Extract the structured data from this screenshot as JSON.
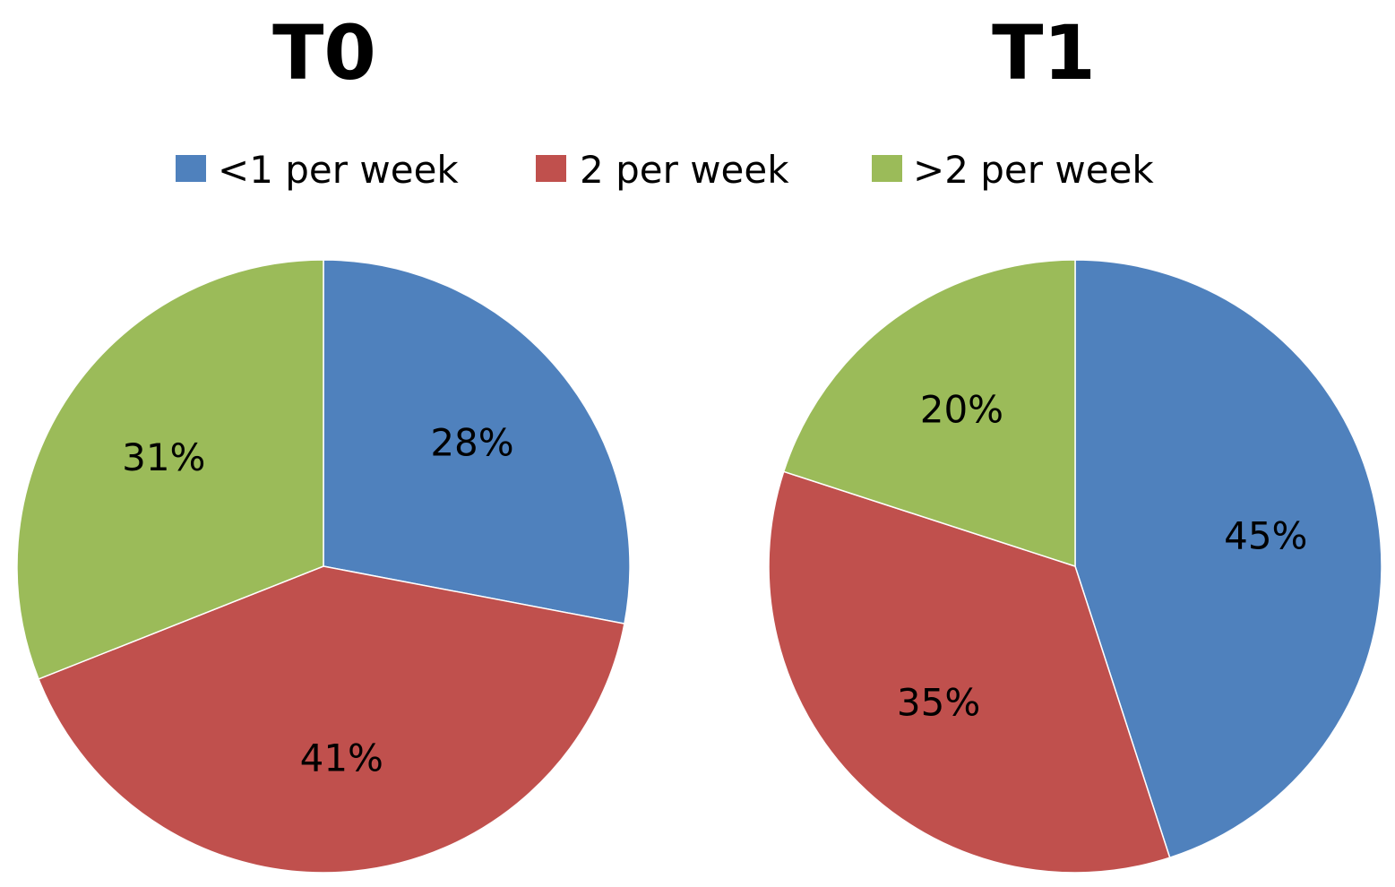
{
  "colors": {
    "lt1_per_week": "#4f81bd",
    "2_per_week": "#c0504d",
    "gt2_per_week": "#9bbb59"
  },
  "legend": {
    "items": [
      {
        "label": "<1 per week",
        "color": "#4f81bd"
      },
      {
        "label": "2 per week",
        "color": "#c0504d"
      },
      {
        "label": ">2 per week",
        "color": "#9bbb59"
      }
    ],
    "position": "top"
  },
  "chart_data": [
    {
      "type": "pie",
      "title": "T0",
      "categories": [
        "<1 per week",
        "2 per week",
        ">2 per week"
      ],
      "values": [
        28,
        41,
        31
      ],
      "data_labels": [
        "28%",
        "41%",
        "31%"
      ],
      "colors": [
        "#4f81bd",
        "#c0504d",
        "#9bbb59"
      ],
      "start": "12 o'clock",
      "direction": "clockwise"
    },
    {
      "type": "pie",
      "title": "T1",
      "categories": [
        "<1 per week",
        "2 per week",
        ">2 per week"
      ],
      "values": [
        45,
        35,
        20
      ],
      "data_labels": [
        "45%",
        "35%",
        "20%"
      ],
      "colors": [
        "#4f81bd",
        "#c0504d",
        "#9bbb59"
      ],
      "start": "12 o'clock",
      "direction": "clockwise"
    }
  ]
}
